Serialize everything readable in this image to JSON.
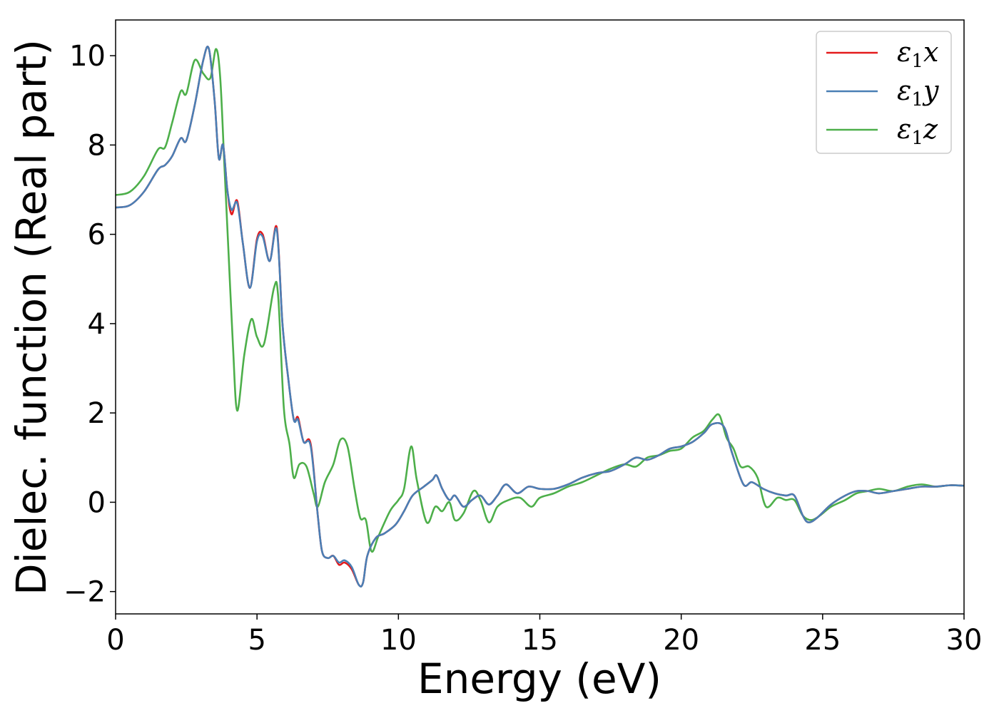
{
  "chart_data": {
    "type": "line",
    "xlabel": "Energy (eV)",
    "ylabel": "Dielec. function (Real part)",
    "xlim": [
      0,
      30
    ],
    "ylim": [
      -2.5,
      10.8
    ],
    "xticks": [
      0,
      5,
      10,
      15,
      20,
      25,
      30
    ],
    "xtick_labels": [
      "0",
      "5",
      "10",
      "15",
      "20",
      "25",
      "30"
    ],
    "yticks": [
      -2,
      0,
      2,
      4,
      6,
      8,
      10
    ],
    "ytick_labels": [
      "−2",
      "0",
      "2",
      "4",
      "6",
      "8",
      "10"
    ],
    "grid": false,
    "legend_position": "top-right",
    "series": [
      {
        "name_main": "ε",
        "name_sub": "1",
        "name_suffix": "x",
        "color": "#e41a1c",
        "points": [
          [
            0,
            6.6
          ],
          [
            0.5,
            6.65
          ],
          [
            1.0,
            6.95
          ],
          [
            1.5,
            7.45
          ],
          [
            1.75,
            7.55
          ],
          [
            2.0,
            7.75
          ],
          [
            2.3,
            8.15
          ],
          [
            2.5,
            8.1
          ],
          [
            2.8,
            8.9
          ],
          [
            3.1,
            9.9
          ],
          [
            3.3,
            10.15
          ],
          [
            3.5,
            9.0
          ],
          [
            3.65,
            7.7
          ],
          [
            3.8,
            8.0
          ],
          [
            3.95,
            7.0
          ],
          [
            4.1,
            6.45
          ],
          [
            4.3,
            6.75
          ],
          [
            4.5,
            5.8
          ],
          [
            4.75,
            4.8
          ],
          [
            5.0,
            5.9
          ],
          [
            5.2,
            6.0
          ],
          [
            5.45,
            5.4
          ],
          [
            5.7,
            6.15
          ],
          [
            5.9,
            4.0
          ],
          [
            6.1,
            2.8
          ],
          [
            6.3,
            1.85
          ],
          [
            6.45,
            1.9
          ],
          [
            6.65,
            1.35
          ],
          [
            6.9,
            1.3
          ],
          [
            7.15,
            -0.3
          ],
          [
            7.3,
            -1.1
          ],
          [
            7.5,
            -1.25
          ],
          [
            7.7,
            -1.2
          ],
          [
            7.9,
            -1.4
          ],
          [
            8.1,
            -1.35
          ],
          [
            8.35,
            -1.5
          ],
          [
            8.6,
            -1.85
          ],
          [
            8.75,
            -1.8
          ],
          [
            8.9,
            -1.2
          ],
          [
            9.2,
            -0.8
          ],
          [
            9.5,
            -0.7
          ],
          [
            9.9,
            -0.5
          ],
          [
            10.2,
            -0.2
          ],
          [
            10.5,
            0.15
          ],
          [
            10.9,
            0.35
          ],
          [
            11.2,
            0.5
          ],
          [
            11.35,
            0.6
          ],
          [
            11.55,
            0.3
          ],
          [
            11.8,
            0.05
          ],
          [
            12.0,
            0.15
          ],
          [
            12.3,
            -0.1
          ],
          [
            12.6,
            0.05
          ],
          [
            12.9,
            0.15
          ],
          [
            13.2,
            -0.05
          ],
          [
            13.5,
            0.15
          ],
          [
            13.8,
            0.4
          ],
          [
            14.2,
            0.2
          ],
          [
            14.6,
            0.35
          ],
          [
            15.0,
            0.3
          ],
          [
            15.5,
            0.3
          ],
          [
            16.0,
            0.4
          ],
          [
            16.5,
            0.55
          ],
          [
            17.0,
            0.65
          ],
          [
            17.5,
            0.7
          ],
          [
            18.0,
            0.85
          ],
          [
            18.4,
            1.0
          ],
          [
            18.8,
            0.95
          ],
          [
            19.2,
            1.05
          ],
          [
            19.6,
            1.2
          ],
          [
            20.0,
            1.25
          ],
          [
            20.4,
            1.35
          ],
          [
            20.8,
            1.55
          ],
          [
            21.1,
            1.75
          ],
          [
            21.5,
            1.7
          ],
          [
            21.8,
            1.1
          ],
          [
            22.2,
            0.4
          ],
          [
            22.5,
            0.45
          ],
          [
            22.9,
            0.3
          ],
          [
            23.3,
            0.2
          ],
          [
            23.7,
            0.15
          ],
          [
            24.0,
            0.15
          ],
          [
            24.3,
            -0.3
          ],
          [
            24.5,
            -0.45
          ],
          [
            24.8,
            -0.35
          ],
          [
            25.3,
            -0.05
          ],
          [
            25.8,
            0.15
          ],
          [
            26.2,
            0.25
          ],
          [
            26.6,
            0.25
          ],
          [
            27.0,
            0.2
          ],
          [
            27.5,
            0.25
          ],
          [
            28.0,
            0.3
          ],
          [
            28.5,
            0.35
          ],
          [
            29.0,
            0.35
          ],
          [
            29.5,
            0.38
          ],
          [
            30.0,
            0.37
          ]
        ]
      },
      {
        "name_main": "ε",
        "name_sub": "1",
        "name_suffix": "y",
        "color": "#4a7fb5",
        "points": [
          [
            0,
            6.6
          ],
          [
            0.5,
            6.65
          ],
          [
            1.0,
            6.95
          ],
          [
            1.5,
            7.45
          ],
          [
            1.75,
            7.55
          ],
          [
            2.0,
            7.75
          ],
          [
            2.3,
            8.15
          ],
          [
            2.5,
            8.1
          ],
          [
            2.8,
            8.9
          ],
          [
            3.1,
            9.9
          ],
          [
            3.3,
            10.15
          ],
          [
            3.5,
            9.0
          ],
          [
            3.65,
            7.7
          ],
          [
            3.8,
            8.0
          ],
          [
            3.95,
            7.0
          ],
          [
            4.1,
            6.55
          ],
          [
            4.3,
            6.7
          ],
          [
            4.5,
            5.8
          ],
          [
            4.75,
            4.8
          ],
          [
            5.0,
            5.85
          ],
          [
            5.2,
            5.95
          ],
          [
            5.45,
            5.4
          ],
          [
            5.7,
            6.1
          ],
          [
            5.9,
            4.0
          ],
          [
            6.1,
            2.8
          ],
          [
            6.3,
            1.85
          ],
          [
            6.45,
            1.85
          ],
          [
            6.65,
            1.35
          ],
          [
            6.9,
            1.25
          ],
          [
            7.15,
            -0.3
          ],
          [
            7.3,
            -1.1
          ],
          [
            7.5,
            -1.25
          ],
          [
            7.7,
            -1.2
          ],
          [
            7.9,
            -1.35
          ],
          [
            8.1,
            -1.3
          ],
          [
            8.35,
            -1.45
          ],
          [
            8.6,
            -1.85
          ],
          [
            8.75,
            -1.8
          ],
          [
            8.9,
            -1.2
          ],
          [
            9.2,
            -0.8
          ],
          [
            9.5,
            -0.7
          ],
          [
            9.9,
            -0.5
          ],
          [
            10.2,
            -0.2
          ],
          [
            10.5,
            0.15
          ],
          [
            10.9,
            0.35
          ],
          [
            11.2,
            0.5
          ],
          [
            11.35,
            0.6
          ],
          [
            11.55,
            0.3
          ],
          [
            11.8,
            0.05
          ],
          [
            12.0,
            0.15
          ],
          [
            12.3,
            -0.1
          ],
          [
            12.6,
            0.05
          ],
          [
            12.9,
            0.15
          ],
          [
            13.2,
            -0.05
          ],
          [
            13.5,
            0.15
          ],
          [
            13.8,
            0.4
          ],
          [
            14.2,
            0.2
          ],
          [
            14.6,
            0.35
          ],
          [
            15.0,
            0.3
          ],
          [
            15.5,
            0.3
          ],
          [
            16.0,
            0.4
          ],
          [
            16.5,
            0.55
          ],
          [
            17.0,
            0.65
          ],
          [
            17.5,
            0.7
          ],
          [
            18.0,
            0.85
          ],
          [
            18.4,
            1.0
          ],
          [
            18.8,
            0.95
          ],
          [
            19.2,
            1.05
          ],
          [
            19.6,
            1.2
          ],
          [
            20.0,
            1.25
          ],
          [
            20.4,
            1.35
          ],
          [
            20.8,
            1.55
          ],
          [
            21.1,
            1.75
          ],
          [
            21.5,
            1.7
          ],
          [
            21.8,
            1.1
          ],
          [
            22.2,
            0.4
          ],
          [
            22.5,
            0.45
          ],
          [
            22.9,
            0.3
          ],
          [
            23.3,
            0.2
          ],
          [
            23.7,
            0.15
          ],
          [
            24.0,
            0.15
          ],
          [
            24.3,
            -0.3
          ],
          [
            24.5,
            -0.45
          ],
          [
            24.8,
            -0.35
          ],
          [
            25.3,
            -0.05
          ],
          [
            25.8,
            0.15
          ],
          [
            26.2,
            0.25
          ],
          [
            26.6,
            0.25
          ],
          [
            27.0,
            0.2
          ],
          [
            27.5,
            0.25
          ],
          [
            28.0,
            0.3
          ],
          [
            28.5,
            0.35
          ],
          [
            29.0,
            0.35
          ],
          [
            29.5,
            0.38
          ],
          [
            30.0,
            0.37
          ]
        ]
      },
      {
        "name_main": "ε",
        "name_sub": "1",
        "name_suffix": "z",
        "color": "#4daf4a",
        "points": [
          [
            0,
            6.88
          ],
          [
            0.5,
            6.95
          ],
          [
            1.0,
            7.3
          ],
          [
            1.5,
            7.9
          ],
          [
            1.75,
            7.95
          ],
          [
            2.0,
            8.5
          ],
          [
            2.3,
            9.2
          ],
          [
            2.5,
            9.15
          ],
          [
            2.8,
            9.9
          ],
          [
            3.1,
            9.6
          ],
          [
            3.35,
            9.5
          ],
          [
            3.55,
            10.15
          ],
          [
            3.7,
            9.5
          ],
          [
            3.85,
            7.5
          ],
          [
            4.0,
            5.5
          ],
          [
            4.15,
            3.5
          ],
          [
            4.3,
            2.05
          ],
          [
            4.55,
            3.3
          ],
          [
            4.8,
            4.1
          ],
          [
            5.0,
            3.7
          ],
          [
            5.25,
            3.55
          ],
          [
            5.6,
            4.8
          ],
          [
            5.75,
            4.6
          ],
          [
            5.95,
            2.1
          ],
          [
            6.15,
            1.3
          ],
          [
            6.3,
            0.55
          ],
          [
            6.5,
            0.85
          ],
          [
            6.75,
            0.8
          ],
          [
            7.0,
            0.2
          ],
          [
            7.15,
            -0.1
          ],
          [
            7.4,
            0.45
          ],
          [
            7.7,
            0.85
          ],
          [
            7.95,
            1.4
          ],
          [
            8.2,
            1.25
          ],
          [
            8.45,
            0.3
          ],
          [
            8.65,
            -0.35
          ],
          [
            8.85,
            -0.4
          ],
          [
            9.05,
            -1.1
          ],
          [
            9.3,
            -0.75
          ],
          [
            9.7,
            -0.2
          ],
          [
            10.0,
            0.05
          ],
          [
            10.2,
            0.3
          ],
          [
            10.45,
            1.25
          ],
          [
            10.65,
            0.5
          ],
          [
            11.0,
            -0.45
          ],
          [
            11.3,
            -0.1
          ],
          [
            11.55,
            -0.2
          ],
          [
            11.8,
            0.0
          ],
          [
            12.0,
            -0.4
          ],
          [
            12.3,
            -0.25
          ],
          [
            12.65,
            0.25
          ],
          [
            12.9,
            0.05
          ],
          [
            13.2,
            -0.45
          ],
          [
            13.5,
            -0.1
          ],
          [
            13.9,
            0.05
          ],
          [
            14.3,
            0.1
          ],
          [
            14.7,
            -0.1
          ],
          [
            15.0,
            0.1
          ],
          [
            15.5,
            0.2
          ],
          [
            16.0,
            0.35
          ],
          [
            16.5,
            0.45
          ],
          [
            17.0,
            0.6
          ],
          [
            17.5,
            0.75
          ],
          [
            18.0,
            0.85
          ],
          [
            18.4,
            0.8
          ],
          [
            18.8,
            1.0
          ],
          [
            19.2,
            1.05
          ],
          [
            19.6,
            1.15
          ],
          [
            20.0,
            1.2
          ],
          [
            20.4,
            1.45
          ],
          [
            20.8,
            1.6
          ],
          [
            21.1,
            1.85
          ],
          [
            21.35,
            1.95
          ],
          [
            21.6,
            1.45
          ],
          [
            21.85,
            1.2
          ],
          [
            22.1,
            0.8
          ],
          [
            22.4,
            0.8
          ],
          [
            22.7,
            0.55
          ],
          [
            23.0,
            -0.1
          ],
          [
            23.4,
            0.1
          ],
          [
            23.7,
            0.05
          ],
          [
            24.0,
            0.05
          ],
          [
            24.3,
            -0.3
          ],
          [
            24.6,
            -0.4
          ],
          [
            24.9,
            -0.3
          ],
          [
            25.3,
            -0.1
          ],
          [
            25.8,
            0.05
          ],
          [
            26.2,
            0.2
          ],
          [
            26.6,
            0.25
          ],
          [
            27.0,
            0.3
          ],
          [
            27.5,
            0.25
          ],
          [
            28.0,
            0.35
          ],
          [
            28.5,
            0.4
          ],
          [
            29.0,
            0.35
          ],
          [
            29.5,
            0.38
          ],
          [
            30.0,
            0.37
          ]
        ]
      }
    ]
  }
}
